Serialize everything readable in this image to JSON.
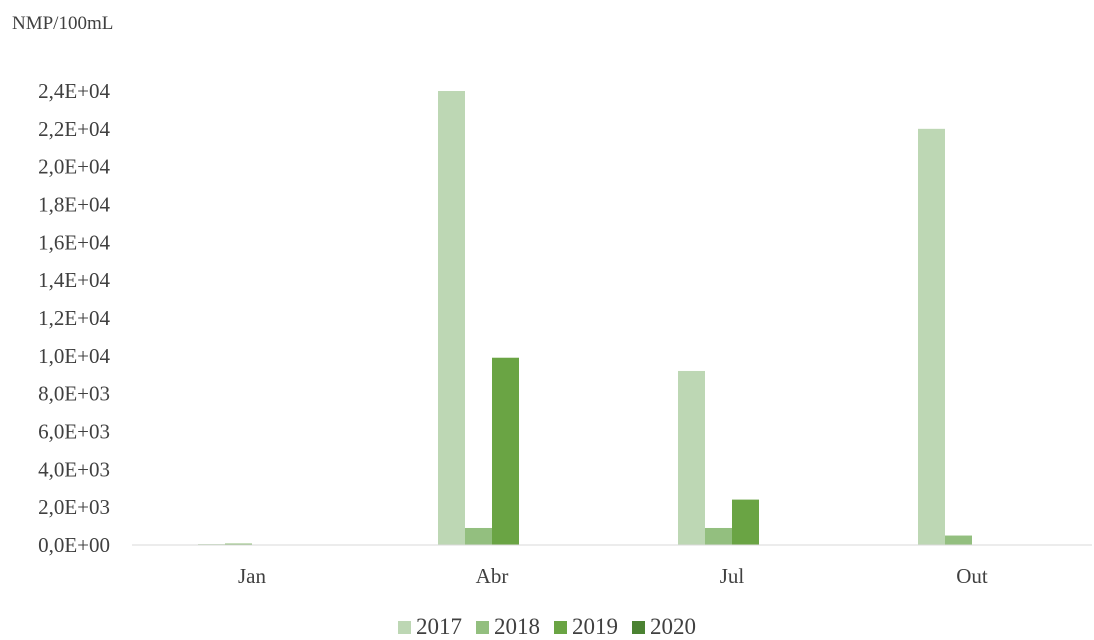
{
  "chart_data": {
    "type": "bar",
    "ylabel": "NMP/100mL",
    "xlabel": "",
    "categories": [
      "Jan",
      "Abr",
      "Jul",
      "Out"
    ],
    "series": [
      {
        "name": "2017",
        "color": "#bdd7b4",
        "values": [
          50,
          24000,
          9200,
          22000
        ]
      },
      {
        "name": "2018",
        "color": "#93bf7f",
        "values": [
          80,
          900,
          900,
          500
        ]
      },
      {
        "name": "2019",
        "color": "#6aa444",
        "values": [
          0,
          9900,
          2400,
          0
        ]
      },
      {
        "name": "2020",
        "color": "#4b8232",
        "values": [
          0,
          0,
          0,
          0
        ]
      }
    ],
    "ylim": [
      0,
      24000
    ],
    "yticks": [
      0,
      2000,
      4000,
      6000,
      8000,
      10000,
      12000,
      14000,
      16000,
      18000,
      20000,
      22000,
      24000
    ],
    "ytick_labels": [
      "0,0E+00",
      "2,0E+03",
      "4,0E+03",
      "6,0E+03",
      "8,0E+03",
      "1,0E+04",
      "1,2E+04",
      "1,4E+04",
      "1,6E+04",
      "1,8E+04",
      "2,0E+04",
      "2,2E+04",
      "2,4E+04"
    ],
    "grid": false,
    "legend_position": "bottom"
  }
}
